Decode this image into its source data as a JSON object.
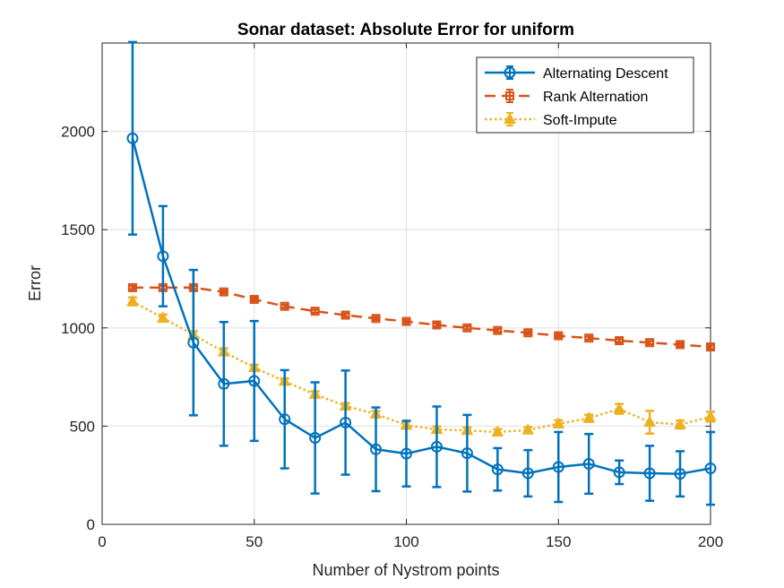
{
  "chart_data": {
    "type": "line",
    "title": "Sonar dataset: Absolute Error for uniform",
    "xlabel": "Number of Nystrom points",
    "ylabel": "Error",
    "xlim": [
      0,
      200
    ],
    "ylim": [
      0,
      2450
    ],
    "xticks": [
      0,
      50,
      100,
      150,
      200
    ],
    "yticks": [
      0,
      500,
      1000,
      1500,
      2000
    ],
    "grid": true,
    "legend_position": "top-right",
    "x": [
      10,
      20,
      30,
      40,
      50,
      60,
      70,
      80,
      90,
      100,
      110,
      120,
      130,
      140,
      150,
      160,
      170,
      180,
      190,
      200
    ],
    "series": [
      {
        "name": "Alternating Descent",
        "color": "#0072BD",
        "line_style": "solid",
        "marker": "circle",
        "values": [
          1965,
          1365,
          925,
          715,
          730,
          535,
          440,
          518,
          382,
          360,
          395,
          362,
          280,
          260,
          292,
          308,
          265,
          260,
          257,
          285
        ],
        "error": [
          490,
          255,
          370,
          315,
          305,
          250,
          283,
          265,
          213,
          167,
          205,
          195,
          108,
          118,
          178,
          152,
          60,
          140,
          115,
          185
        ]
      },
      {
        "name": "Rank Alternation",
        "color": "#D95319",
        "line_style": "dashed",
        "marker": "square",
        "values": [
          1205,
          1205,
          1205,
          1183,
          1145,
          1110,
          1085,
          1065,
          1048,
          1033,
          1015,
          1000,
          987,
          975,
          960,
          948,
          935,
          925,
          915,
          903
        ],
        "error": [
          8,
          8,
          8,
          8,
          8,
          8,
          8,
          8,
          8,
          8,
          8,
          8,
          8,
          8,
          8,
          8,
          8,
          8,
          8,
          8
        ]
      },
      {
        "name": "Soft-Impute",
        "color": "#EDB120",
        "line_style": "dotted",
        "marker": "triangle",
        "values": [
          1135,
          1050,
          965,
          878,
          798,
          728,
          662,
          602,
          562,
          505,
          483,
          478,
          470,
          480,
          512,
          540,
          588,
          520,
          508,
          548
        ],
        "error": [
          20,
          18,
          18,
          18,
          15,
          15,
          15,
          15,
          15,
          18,
          15,
          15,
          15,
          15,
          18,
          18,
          25,
          58,
          20,
          25
        ]
      }
    ]
  }
}
